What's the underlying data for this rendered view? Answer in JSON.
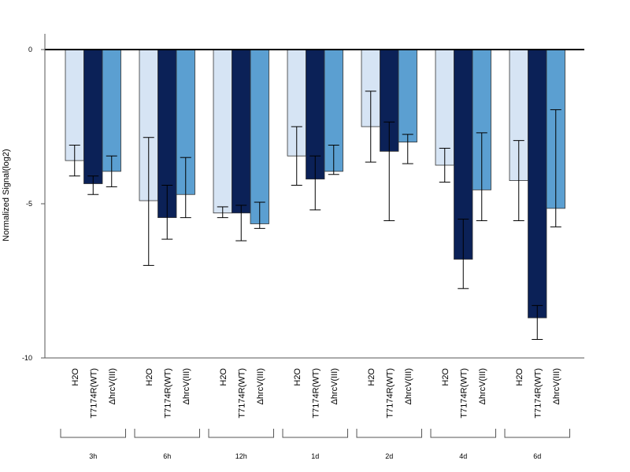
{
  "chart_data": {
    "type": "bar",
    "title": "",
    "xlabel": "",
    "ylabel": "Normalized Signal(log2)",
    "ylim": [
      -10,
      0.5
    ],
    "yticks": [
      0,
      -5,
      -10
    ],
    "yticklabels": [
      "0",
      "-5",
      "-10"
    ],
    "series": [
      {
        "name": "H2O",
        "color": "#d6e4f4"
      },
      {
        "name": "T7174R(WT)",
        "color": "#0b2157"
      },
      {
        "name": "ΔhrcV(III)",
        "color": "#5b9fd1"
      }
    ],
    "groups": [
      {
        "name": "3h",
        "values": [
          -3.6,
          -4.35,
          -3.95
        ],
        "err_low": [
          -4.1,
          -4.7,
          -4.45
        ],
        "err_high": [
          -3.1,
          -4.1,
          -3.45
        ]
      },
      {
        "name": "6h",
        "values": [
          -4.9,
          -5.45,
          -4.7
        ],
        "err_low": [
          -7.0,
          -6.15,
          -5.45
        ],
        "err_high": [
          -2.85,
          -4.4,
          -3.5
        ]
      },
      {
        "name": "12h",
        "values": [
          -5.3,
          -5.3,
          -5.65
        ],
        "err_low": [
          -5.45,
          -6.2,
          -5.8
        ],
        "err_high": [
          -5.1,
          -5.05,
          -4.95
        ]
      },
      {
        "name": "1d",
        "values": [
          -3.45,
          -4.2,
          -3.95
        ],
        "err_low": [
          -4.4,
          -5.2,
          -4.05
        ],
        "err_high": [
          -2.5,
          -3.45,
          -3.1
        ]
      },
      {
        "name": "2d",
        "values": [
          -2.5,
          -3.3,
          -3.0
        ],
        "err_low": [
          -3.65,
          -5.55,
          -3.7
        ],
        "err_high": [
          -1.35,
          -2.35,
          -2.75
        ]
      },
      {
        "name": "4d",
        "values": [
          -3.75,
          -6.8,
          -4.55
        ],
        "err_low": [
          -4.3,
          -7.75,
          -5.55
        ],
        "err_high": [
          -3.2,
          -5.5,
          -2.7
        ]
      },
      {
        "name": "6d",
        "values": [
          -4.25,
          -8.7,
          -5.15
        ],
        "err_low": [
          -5.55,
          -9.4,
          -5.75
        ],
        "err_high": [
          -2.95,
          -8.3,
          -1.95
        ]
      }
    ]
  }
}
